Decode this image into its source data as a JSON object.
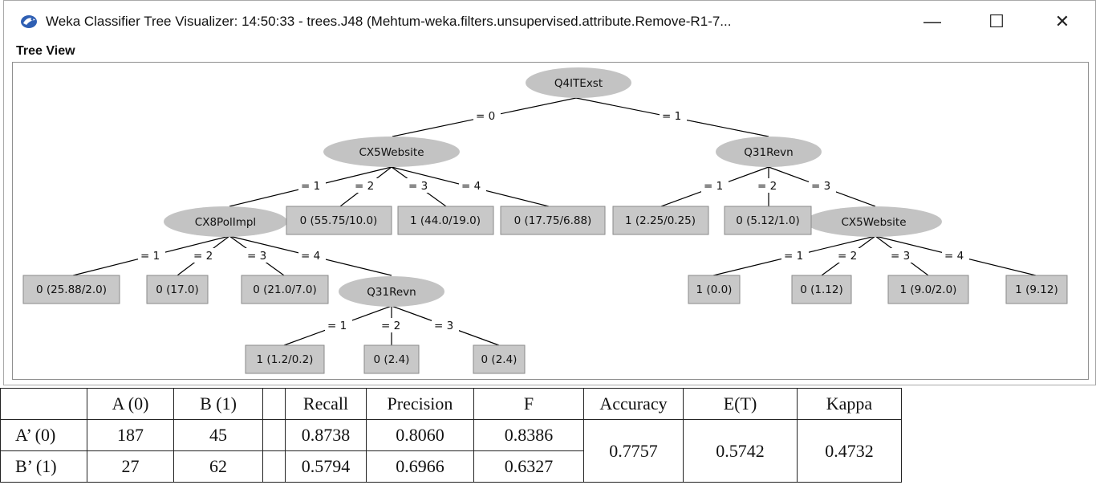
{
  "window": {
    "title": "Weka Classifier Tree Visualizer: 14:50:33 - trees.J48 (Mehtum-weka.filters.unsupervised.attribute.Remove-R1-7...",
    "controls": {
      "minimize": "—",
      "maximize": "☐",
      "close": "✕"
    },
    "icon": "weka-bird-icon"
  },
  "tree_view": {
    "label": "Tree View",
    "nodes": {
      "root": "Q4ITExst",
      "cx5_left": "CX5Website",
      "q31_right": "Q31Revn",
      "cx8": "CX8PolImpl",
      "leaf_cx5_2": "0 (55.75/10.0)",
      "leaf_cx5_3": "1 (44.0/19.0)",
      "leaf_cx5_4": "0 (17.75/6.88)",
      "leaf_q31r_1": "1 (2.25/0.25)",
      "leaf_q31r_2": "0 (5.12/1.0)",
      "cx5_right": "CX5Website",
      "leaf_cx8_1": "0 (25.88/2.0)",
      "leaf_cx8_2": "0 (17.0)",
      "leaf_cx8_3": "0 (21.0/7.0)",
      "q31_mid": "Q31Revn",
      "leaf_cx5r_1": "1 (0.0)",
      "leaf_cx5r_2": "0 (1.12)",
      "leaf_cx5r_3": "1 (9.0/2.0)",
      "leaf_cx5r_4": "1 (9.12)",
      "leaf_q31m_1": "1 (1.2/0.2)",
      "leaf_q31m_2": "0 (2.4)",
      "leaf_q31m_3": "0 (2.4)"
    },
    "edges": {
      "root_0": "= 0",
      "root_1": "= 1",
      "cx5l_1": "= 1",
      "cx5l_2": "= 2",
      "cx5l_3": "= 3",
      "cx5l_4": "= 4",
      "q31r_1": "= 1",
      "q31r_2": "= 2",
      "q31r_3": "= 3",
      "cx8_1": "= 1",
      "cx8_2": "= 2",
      "cx8_3": "= 3",
      "cx8_4": "= 4",
      "cx5r_1": "= 1",
      "cx5r_2": "= 2",
      "cx5r_3": "= 3",
      "cx5r_4": "= 4",
      "q31m_1": "= 1",
      "q31m_2": "= 2",
      "q31m_3": "= 3"
    },
    "colors": {
      "node_fill": "#c3c3c3",
      "leaf_fill": "#c8c8c8",
      "line": "#000000"
    }
  },
  "metrics_table": {
    "headers": [
      "",
      "A (0)",
      "B (1)",
      "",
      "Recall",
      "Precision",
      "F",
      "Accuracy",
      "E(T)",
      "Kappa"
    ],
    "rows": [
      {
        "label": "A’ (0)",
        "a": "187",
        "b": "45",
        "recall": "0.8738",
        "precision": "0.8060",
        "f": "0.8386"
      },
      {
        "label": "B’ (1)",
        "a": "27",
        "b": "62",
        "recall": "0.5794",
        "precision": "0.6966",
        "f": "0.6327"
      }
    ],
    "accuracy": "0.7757",
    "et": "0.5742",
    "kappa": "0.4732"
  }
}
